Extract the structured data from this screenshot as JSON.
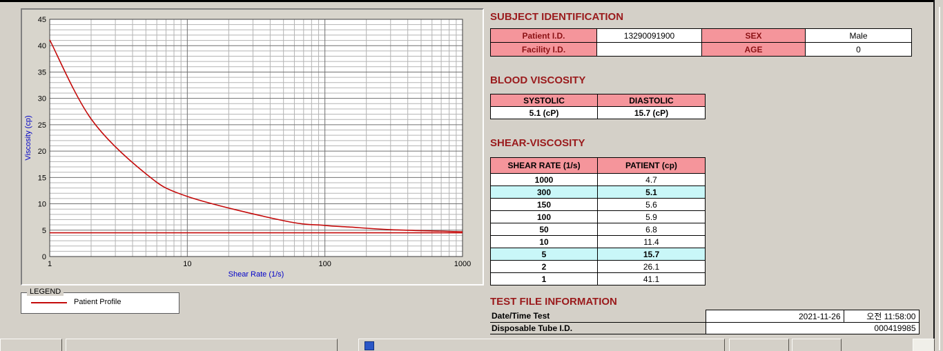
{
  "colors": {
    "window_bg": "#d4d0c8",
    "heading": "#9a1a1c",
    "pink_header": "#f5959b",
    "cyan_highlight": "#c9f7f8",
    "curve_red": "#c40a0a",
    "axis_label_blue": "#0000c8"
  },
  "chart_data": {
    "type": "line",
    "title": "",
    "xlabel": "Shear Rate (1/s)",
    "ylabel": "Viscosity (cp)",
    "x_scale": "log",
    "xlim": [
      1,
      1000
    ],
    "ylim": [
      0,
      45
    ],
    "x_ticks": [
      1,
      10,
      100,
      1000
    ],
    "y_tick_step": 5,
    "grid": "major+minor",
    "axis_label_color": "#0000c8",
    "legend_position": "groupbox-below-left",
    "series": [
      {
        "name": "Patient Profile",
        "color": "#c40a0a",
        "smooth": true,
        "x": [
          1,
          2,
          5,
          10,
          50,
          100,
          150,
          300,
          1000
        ],
        "y": [
          41.1,
          26.1,
          15.7,
          11.4,
          6.8,
          5.9,
          5.6,
          5.1,
          4.7
        ]
      },
      {
        "name": "baseline",
        "color": "#c40a0a",
        "smooth": false,
        "x": [
          1,
          1000
        ],
        "y": [
          4.5,
          4.5
        ]
      }
    ]
  },
  "legend": {
    "title": "LEGEND",
    "items": [
      {
        "label": "Patient Profile",
        "color": "#c40a0a"
      }
    ]
  },
  "subject_identification": {
    "heading": "SUBJECT IDENTIFICATION",
    "rows": [
      {
        "label1": "Patient I.D.",
        "value1": "13290091900",
        "label2": "SEX",
        "value2": "Male"
      },
      {
        "label1": "Facility I.D.",
        "value1": "",
        "label2": "AGE",
        "value2": "0"
      }
    ]
  },
  "blood_viscosity": {
    "heading": "BLOOD VISCOSITY",
    "columns": [
      "SYSTOLIC",
      "DIASTOLIC"
    ],
    "values": [
      "5.1 (cP)",
      "15.7 (cP)"
    ]
  },
  "shear_viscosity": {
    "heading": "SHEAR-VISCOSITY",
    "columns": [
      "SHEAR RATE (1/s)",
      "PATIENT (cp)"
    ],
    "rows": [
      {
        "shear_rate": "1000",
        "patient": "4.7",
        "highlight": false
      },
      {
        "shear_rate": "300",
        "patient": "5.1",
        "highlight": true
      },
      {
        "shear_rate": "150",
        "patient": "5.6",
        "highlight": false
      },
      {
        "shear_rate": "100",
        "patient": "5.9",
        "highlight": false
      },
      {
        "shear_rate": "50",
        "patient": "6.8",
        "highlight": false
      },
      {
        "shear_rate": "10",
        "patient": "11.4",
        "highlight": false
      },
      {
        "shear_rate": "5",
        "patient": "15.7",
        "highlight": true
      },
      {
        "shear_rate": "2",
        "patient": "26.1",
        "highlight": false
      },
      {
        "shear_rate": "1",
        "patient": "41.1",
        "highlight": false
      }
    ]
  },
  "test_file_information": {
    "heading": "TEST FILE INFORMATION",
    "rows": [
      {
        "label": "Date/Time Test",
        "value_date": "2021-11-26",
        "value_time": "오전 11:58:00"
      },
      {
        "label": "Disposable Tube I.D.",
        "value": "000419985"
      }
    ]
  }
}
